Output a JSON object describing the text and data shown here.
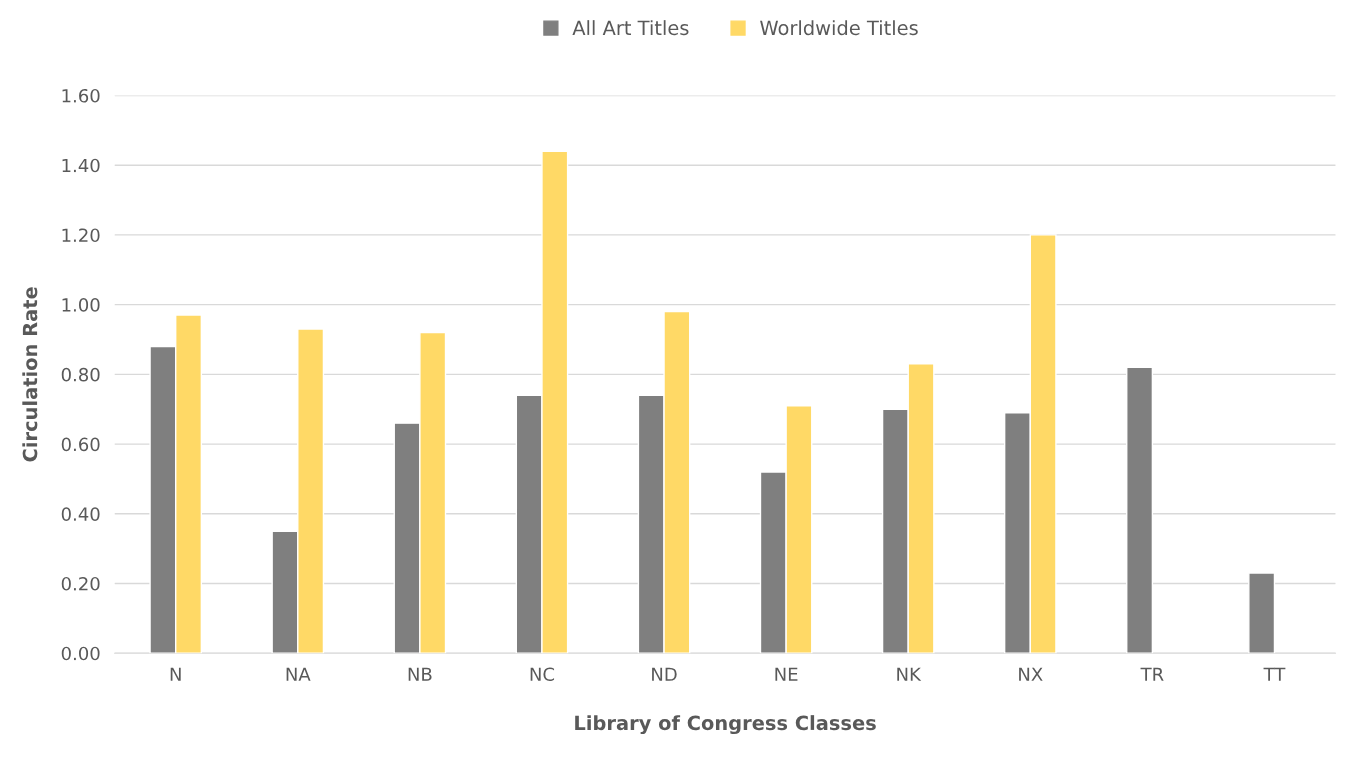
{
  "chart_data": {
    "type": "bar",
    "xlabel": "Library of Congress Classes",
    "ylabel": "Circulation Rate",
    "categories": [
      "N",
      "NA",
      "NB",
      "NC",
      "ND",
      "NE",
      "NK",
      "NX",
      "TR",
      "TT"
    ],
    "series": [
      {
        "name": "All Art Titles",
        "color": "#7f7f7f",
        "values": [
          0.88,
          0.35,
          0.66,
          0.74,
          0.74,
          0.52,
          0.7,
          0.69,
          0.82,
          0.23
        ]
      },
      {
        "name": "Worldwide Titles",
        "color": "#ffd966",
        "values": [
          0.97,
          0.93,
          0.92,
          1.44,
          0.98,
          0.71,
          0.83,
          1.2,
          null,
          null
        ]
      }
    ],
    "ylim": [
      0,
      1.6
    ],
    "yticks": [
      {
        "value": 0,
        "label": "0.00"
      },
      {
        "value": 0.2,
        "label": "0.20"
      },
      {
        "value": 0.4,
        "label": "0.40"
      },
      {
        "value": 0.6,
        "label": "0.60"
      },
      {
        "value": 0.8,
        "label": "0.80"
      },
      {
        "value": 1.0,
        "label": "1.00"
      },
      {
        "value": 1.2,
        "label": "1.20"
      },
      {
        "value": 1.4,
        "label": "1.40"
      },
      {
        "value": 1.6,
        "label": "1.60"
      }
    ],
    "grid": "y",
    "legend": "top"
  }
}
